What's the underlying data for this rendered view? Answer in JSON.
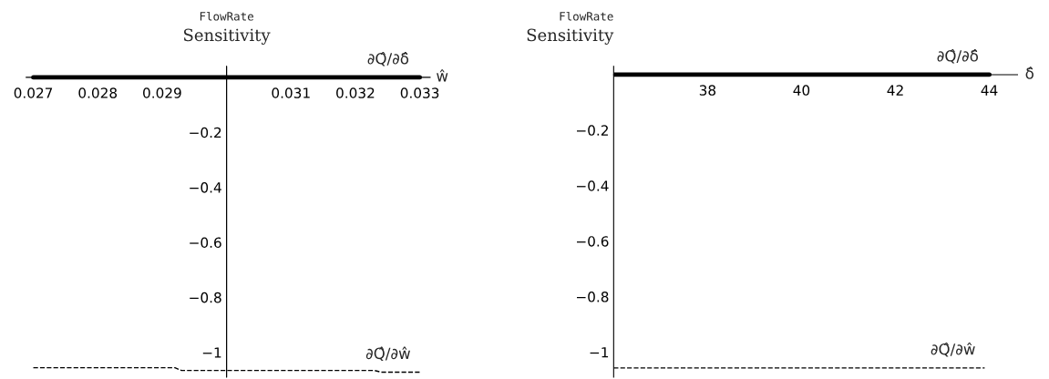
{
  "chart_data": [
    {
      "type": "line",
      "title": "FlowRate",
      "ylabel": "Sensitivity",
      "xlabel": "ŵ",
      "xlim": [
        0.02689,
        0.03316
      ],
      "xticks": [
        0.027,
        0.028,
        0.029,
        0.031,
        0.032,
        0.033
      ],
      "ylim": [
        -1.09,
        0.04
      ],
      "yticks": [
        {
          "value": -0.2,
          "label": "−0.2"
        },
        {
          "value": -0.4,
          "label": "−0.4"
        },
        {
          "value": -0.6,
          "label": "−0.6"
        },
        {
          "value": -0.8,
          "label": "−0.8"
        },
        {
          "value": -1,
          "label": "−1"
        }
      ],
      "ref_lines": [
        {
          "axis": "x",
          "value": 0.03,
          "color": "#000000"
        }
      ],
      "grid": false,
      "legend": false,
      "series": [
        {
          "name": "∂Q̂/∂δ̂",
          "color": "#000000",
          "line_style": "solid",
          "x": [
            0.027,
            0.033
          ],
          "values": [
            0,
            0
          ]
        },
        {
          "name": "∂Q̂/∂ŵ",
          "color": "#000000",
          "line_style": "dashed",
          "x": [
            0.027,
            0.0292,
            0.0293,
            0.0323,
            0.0324,
            0.033
          ],
          "values": [
            -1.056,
            -1.056,
            -1.066,
            -1.066,
            -1.072,
            -1.072
          ]
        }
      ]
    },
    {
      "type": "line",
      "title": "FlowRate",
      "ylabel": "Sensitivity",
      "xlabel": "δ̂",
      "xlim": [
        36,
        44.6
      ],
      "xticks": [
        38,
        40,
        42,
        44
      ],
      "ylim": [
        -1.09,
        0.03
      ],
      "yticks": [
        {
          "value": -0.2,
          "label": "−0.2"
        },
        {
          "value": -0.4,
          "label": "−0.4"
        },
        {
          "value": -0.6,
          "label": "−0.6"
        },
        {
          "value": -0.8,
          "label": "−0.8"
        },
        {
          "value": -1,
          "label": "−1"
        }
      ],
      "grid": false,
      "legend": false,
      "series": [
        {
          "name": "∂Q̂/∂δ̂",
          "color": "#000000",
          "line_style": "solid",
          "x": [
            36,
            44
          ],
          "values": [
            0,
            0
          ]
        },
        {
          "name": "∂Q̂/∂ŵ",
          "color": "#000000",
          "line_style": "dashed",
          "x": [
            36,
            43.9
          ],
          "values": [
            -1.057,
            -1.057
          ]
        }
      ]
    }
  ]
}
